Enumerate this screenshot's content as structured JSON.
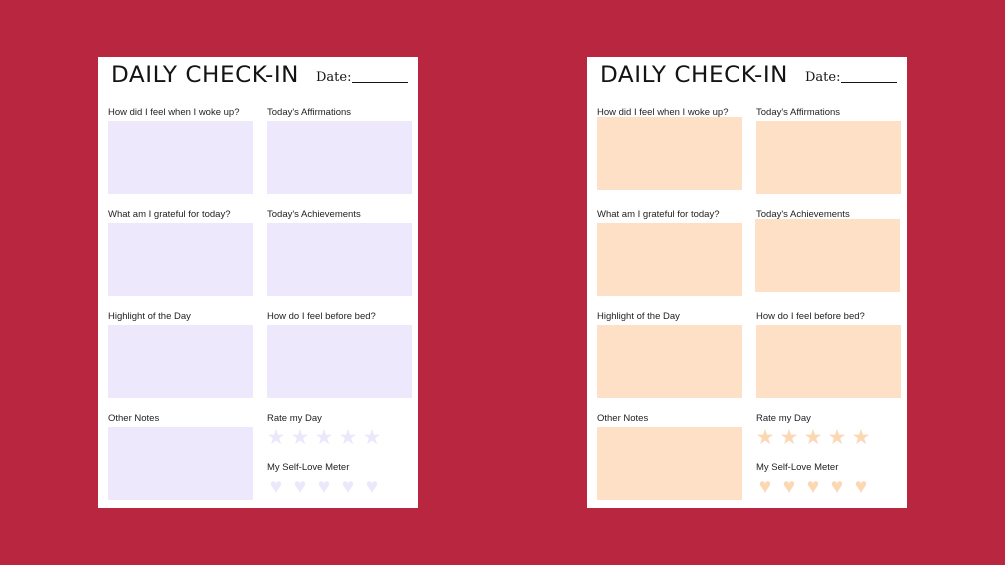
{
  "sheets": [
    {
      "title": "DAILY CHECK-IN",
      "date_label": "Date:",
      "prompts": {
        "woke_up": "How did I feel when I woke up?",
        "affirmations": "Today's  Affirmations",
        "grateful": "What am I grateful for today?",
        "achievements": "Today's  Achievements",
        "highlight": "Highlight of the Day",
        "before_bed": "How do I feel before bed?",
        "notes": "Other Notes",
        "rate_day": "Rate my Day",
        "self_love": "My Self-Love Meter"
      },
      "box_color": "#ede8fb",
      "icon_color": "#ece7fb"
    },
    {
      "title": "DAILY CHECK-IN",
      "date_label": "Date:",
      "prompts": {
        "woke_up": "How did I feel when I woke up?",
        "affirmations": "Today's  Affirmations",
        "grateful": "What am I grateful for today?",
        "achievements": "Today's  Achievements",
        "highlight": "Highlight of the Day",
        "before_bed": "How do I feel before bed?",
        "notes": "Other Notes",
        "rate_day": "Rate my Day",
        "self_love": "My Self-Love Meter"
      },
      "box_color": "#fde0c5",
      "icon_color": "#fcd7b4"
    }
  ],
  "background_color": "#b82640",
  "rating_icon": "star-icon",
  "meter_icon": "heart-icon",
  "rating_count": 5,
  "meter_count": 5
}
